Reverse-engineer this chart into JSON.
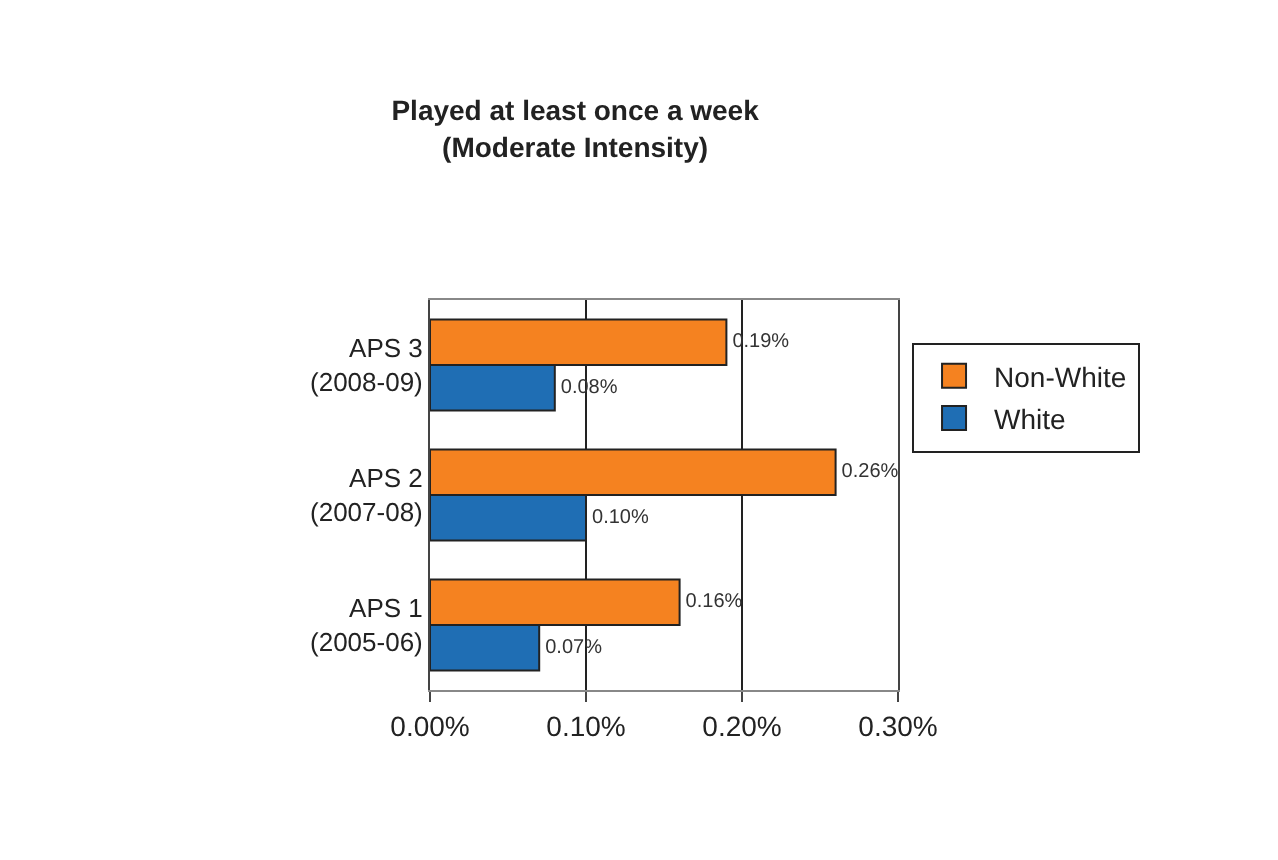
{
  "chart_data": {
    "type": "bar",
    "orientation": "horizontal",
    "title": "Played at least once a week\n(Moderate Intensity)",
    "categories": [
      "APS 3\n(2008-09)",
      "APS 2\n(2007-08)",
      "APS 1\n(2005-06)"
    ],
    "series": [
      {
        "name": "Non-White",
        "color": "#f58220",
        "values": [
          0.19,
          0.26,
          0.16
        ],
        "value_labels": [
          "0.19%",
          "0.26%",
          "0.16%"
        ]
      },
      {
        "name": "White",
        "color": "#1f6eb4",
        "values": [
          0.08,
          0.1,
          0.07
        ],
        "value_labels": [
          "0.08%",
          "0.10%",
          "0.07%"
        ]
      }
    ],
    "xlim": [
      0,
      0.3
    ],
    "xticks": [
      {
        "value": 0,
        "label": "0.00%"
      },
      {
        "value": 0.1,
        "label": "0.10%"
      },
      {
        "value": 0.2,
        "label": "0.20%"
      },
      {
        "value": 0.3,
        "label": "0.30%"
      }
    ],
    "grid": "x",
    "legend": "right"
  }
}
